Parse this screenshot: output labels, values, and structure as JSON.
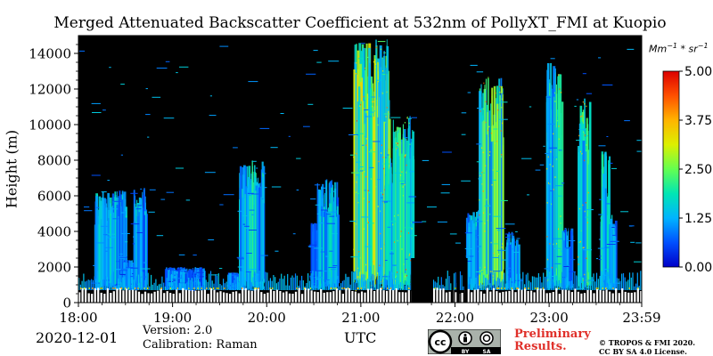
{
  "chart_data": {
    "type": "heatmap",
    "title": "Merged Attenuated Backscatter Coefficient at 532nm of PollyXT_FMI at Kuopio",
    "ylabel": "Height (m)",
    "xlabel": "UTC",
    "ylim": [
      0,
      15000
    ],
    "yticks": [
      "0",
      "2000",
      "4000",
      "6000",
      "8000",
      "10000",
      "12000",
      "14000"
    ],
    "xticks": [
      "18:00",
      "19:00",
      "20:00",
      "21:00",
      "22:00",
      "23:00",
      "23:59"
    ],
    "colorbar": {
      "units_base": "Mm",
      "units_exp1": "−1",
      "units_sep": " * sr",
      "units_exp2": "−1",
      "range": [
        0,
        5
      ],
      "ticks": [
        "0.00",
        "1.25",
        "2.50",
        "3.75",
        "5.00"
      ],
      "colors": [
        "#0000c8",
        "#0050ff",
        "#00b4ff",
        "#00e6b4",
        "#64ff50",
        "#dcf000",
        "#ffb400",
        "#ff5000",
        "#dc0000"
      ]
    },
    "cloud_columns": [
      {
        "start": "18:10",
        "end": "18:30",
        "top_m": 6300,
        "intensity": 0.45
      },
      {
        "start": "18:28",
        "end": "18:40",
        "top_m": 2400,
        "intensity": 0.3
      },
      {
        "start": "18:35",
        "end": "18:43",
        "top_m": 6500,
        "intensity": 0.4
      },
      {
        "start": "18:55",
        "end": "19:20",
        "top_m": 2000,
        "intensity": 0.3
      },
      {
        "start": "19:35",
        "end": "19:45",
        "top_m": 1700,
        "intensity": 0.3
      },
      {
        "start": "19:42",
        "end": "19:58",
        "top_m": 8000,
        "intensity": 0.5
      },
      {
        "start": "20:28",
        "end": "20:36",
        "top_m": 4500,
        "intensity": 0.35
      },
      {
        "start": "20:32",
        "end": "20:45",
        "top_m": 7000,
        "intensity": 0.45
      },
      {
        "start": "20:55",
        "end": "21:18",
        "top_m": 14800,
        "intensity": 0.8
      },
      {
        "start": "21:15",
        "end": "21:22",
        "top_m": 8500,
        "intensity": 0.5
      },
      {
        "start": "21:20",
        "end": "21:33",
        "top_m": 10500,
        "intensity": 0.65
      },
      {
        "start": "21:32",
        "end": "21:36",
        "top_m": 1800,
        "intensity": 0.35
      },
      {
        "start": "22:07",
        "end": "22:15",
        "top_m": 5200,
        "intensity": 0.45
      },
      {
        "start": "22:15",
        "end": "22:30",
        "top_m": 12700,
        "intensity": 0.7
      },
      {
        "start": "22:32",
        "end": "22:40",
        "top_m": 4000,
        "intensity": 0.45
      },
      {
        "start": "22:58",
        "end": "23:08",
        "top_m": 13500,
        "intensity": 0.6
      },
      {
        "start": "23:08",
        "end": "23:14",
        "top_m": 4200,
        "intensity": 0.35
      },
      {
        "start": "23:18",
        "end": "23:26",
        "top_m": 11500,
        "intensity": 0.6
      },
      {
        "start": "23:32",
        "end": "23:40",
        "top_m": 5000,
        "intensity": 0.4
      },
      {
        "start": "23:33",
        "end": "23:38",
        "top_m": 8500,
        "intensity": 0.5
      },
      {
        "start": "23:38",
        "end": "23:42",
        "top_m": 4800,
        "intensity": 0.4
      }
    ],
    "no_data_periods": [
      {
        "start": "21:32",
        "end": "21:46"
      },
      {
        "start": "21:58",
        "end": "21:59"
      },
      {
        "start": "22:01",
        "end": "22:03"
      },
      {
        "start": "22:06",
        "end": "22:08"
      }
    ],
    "surface_layer_top_m": 700
  },
  "footer": {
    "date": "2020-12-01",
    "version": "Version: 2.0",
    "calibration": "Calibration: Raman",
    "preliminary_line1": "Preliminary",
    "preliminary_line2": "Results.",
    "copyright_line1": "© TROPOS & FMI 2020.",
    "copyright_line2": "CC BY SA 4.0 License.",
    "license_by": "BY",
    "license_sa": "SA",
    "license_cc": "cc"
  }
}
